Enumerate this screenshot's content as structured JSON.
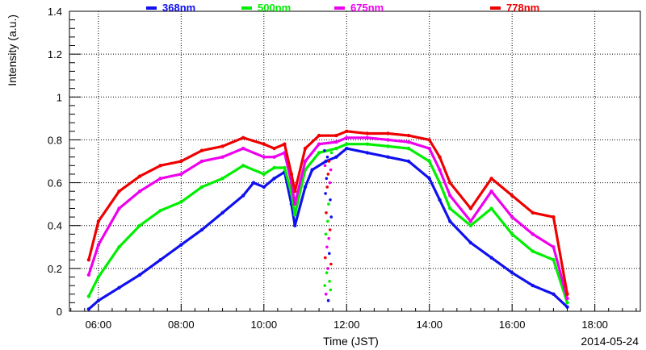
{
  "chart_data": {
    "type": "scatter",
    "title": "",
    "xlabel": "Time (JST)",
    "ylabel": "Intensity (a.u.)",
    "date_label": "2014-05-24",
    "xlim": [
      "05:18",
      "19:06"
    ],
    "ylim": [
      0,
      1.4
    ],
    "grid": true,
    "legend_position": "top",
    "x_ticks": [
      "06:00",
      "08:00",
      "10:00",
      "12:00",
      "14:00",
      "16:00",
      "18:00"
    ],
    "y_ticks": [
      "0",
      "0.2",
      "0.4",
      "0.6",
      "0.8",
      "1",
      "1.2",
      "1.4"
    ],
    "series": [
      {
        "name": "368nm",
        "color": "#1010ee",
        "points": [
          [
            "05:46",
            0.01
          ],
          [
            "06:00",
            0.05
          ],
          [
            "06:30",
            0.11
          ],
          [
            "07:00",
            0.17
          ],
          [
            "07:30",
            0.24
          ],
          [
            "08:00",
            0.31
          ],
          [
            "08:30",
            0.38
          ],
          [
            "09:00",
            0.46
          ],
          [
            "09:30",
            0.54
          ],
          [
            "09:45",
            0.6
          ],
          [
            "10:00",
            0.58
          ],
          [
            "10:15",
            0.62
          ],
          [
            "10:30",
            0.65
          ],
          [
            "10:40",
            0.5
          ],
          [
            "10:45",
            0.4
          ],
          [
            "11:00",
            0.58
          ],
          [
            "11:10",
            0.66
          ],
          [
            "11:30",
            0.7
          ],
          [
            "11:45",
            0.72
          ],
          [
            "12:00",
            0.76
          ],
          [
            "12:30",
            0.74
          ],
          [
            "13:00",
            0.72
          ],
          [
            "13:30",
            0.7
          ],
          [
            "14:00",
            0.62
          ],
          [
            "14:15",
            0.52
          ],
          [
            "14:30",
            0.42
          ],
          [
            "15:00",
            0.32
          ],
          [
            "15:30",
            0.25
          ],
          [
            "16:00",
            0.18
          ],
          [
            "16:30",
            0.12
          ],
          [
            "17:00",
            0.08
          ],
          [
            "17:20",
            0.02
          ]
        ]
      },
      {
        "name": "500nm",
        "color": "#00ee00",
        "points": [
          [
            "05:46",
            0.07
          ],
          [
            "06:00",
            0.16
          ],
          [
            "06:30",
            0.3
          ],
          [
            "07:00",
            0.4
          ],
          [
            "07:30",
            0.47
          ],
          [
            "08:00",
            0.51
          ],
          [
            "08:30",
            0.58
          ],
          [
            "09:00",
            0.62
          ],
          [
            "09:30",
            0.68
          ],
          [
            "10:00",
            0.64
          ],
          [
            "10:15",
            0.67
          ],
          [
            "10:30",
            0.67
          ],
          [
            "10:40",
            0.55
          ],
          [
            "10:45",
            0.45
          ],
          [
            "11:00",
            0.66
          ],
          [
            "11:20",
            0.74
          ],
          [
            "11:45",
            0.76
          ],
          [
            "12:00",
            0.78
          ],
          [
            "12:30",
            0.78
          ],
          [
            "13:00",
            0.77
          ],
          [
            "13:30",
            0.76
          ],
          [
            "14:00",
            0.7
          ],
          [
            "14:15",
            0.6
          ],
          [
            "14:30",
            0.48
          ],
          [
            "15:00",
            0.4
          ],
          [
            "15:30",
            0.48
          ],
          [
            "16:00",
            0.36
          ],
          [
            "16:30",
            0.28
          ],
          [
            "17:00",
            0.24
          ],
          [
            "17:20",
            0.04
          ]
        ]
      },
      {
        "name": "675nm",
        "color": "#ee00ee",
        "points": [
          [
            "05:46",
            0.17
          ],
          [
            "06:00",
            0.31
          ],
          [
            "06:30",
            0.48
          ],
          [
            "07:00",
            0.56
          ],
          [
            "07:30",
            0.62
          ],
          [
            "08:00",
            0.64
          ],
          [
            "08:30",
            0.7
          ],
          [
            "09:00",
            0.72
          ],
          [
            "09:30",
            0.76
          ],
          [
            "10:00",
            0.72
          ],
          [
            "10:15",
            0.72
          ],
          [
            "10:30",
            0.74
          ],
          [
            "10:40",
            0.6
          ],
          [
            "10:45",
            0.5
          ],
          [
            "11:00",
            0.7
          ],
          [
            "11:20",
            0.78
          ],
          [
            "11:45",
            0.79
          ],
          [
            "12:00",
            0.81
          ],
          [
            "12:30",
            0.81
          ],
          [
            "13:00",
            0.8
          ],
          [
            "13:30",
            0.79
          ],
          [
            "14:00",
            0.76
          ],
          [
            "14:15",
            0.66
          ],
          [
            "14:30",
            0.54
          ],
          [
            "15:00",
            0.42
          ],
          [
            "15:30",
            0.56
          ],
          [
            "16:00",
            0.44
          ],
          [
            "16:30",
            0.36
          ],
          [
            "17:00",
            0.3
          ],
          [
            "17:20",
            0.06
          ]
        ]
      },
      {
        "name": "778nm",
        "color": "#ee0000",
        "points": [
          [
            "05:46",
            0.24
          ],
          [
            "06:00",
            0.42
          ],
          [
            "06:30",
            0.56
          ],
          [
            "07:00",
            0.63
          ],
          [
            "07:30",
            0.68
          ],
          [
            "08:00",
            0.7
          ],
          [
            "08:30",
            0.75
          ],
          [
            "09:00",
            0.77
          ],
          [
            "09:30",
            0.81
          ],
          [
            "10:00",
            0.78
          ],
          [
            "10:15",
            0.76
          ],
          [
            "10:30",
            0.78
          ],
          [
            "10:40",
            0.64
          ],
          [
            "10:45",
            0.56
          ],
          [
            "11:00",
            0.76
          ],
          [
            "11:20",
            0.82
          ],
          [
            "11:45",
            0.82
          ],
          [
            "12:00",
            0.84
          ],
          [
            "12:30",
            0.83
          ],
          [
            "13:00",
            0.83
          ],
          [
            "13:30",
            0.82
          ],
          [
            "14:00",
            0.8
          ],
          [
            "14:15",
            0.72
          ],
          [
            "14:30",
            0.6
          ],
          [
            "15:00",
            0.48
          ],
          [
            "15:30",
            0.62
          ],
          [
            "16:00",
            0.54
          ],
          [
            "16:30",
            0.46
          ],
          [
            "17:00",
            0.44
          ],
          [
            "17:20",
            0.08
          ]
        ]
      }
    ],
    "transients": {
      "start": "11:28",
      "end": "11:38",
      "values": [
        0.75,
        0.12,
        0.68,
        0.25,
        0.55,
        0.36,
        0.08,
        0.46,
        0.62,
        0.18,
        0.3,
        0.58,
        0.72,
        0.42,
        0.2,
        0.64,
        0.05,
        0.5,
        0.34,
        0.7,
        0.27,
        0.14,
        0.6,
        0.38,
        0.52,
        0.1,
        0.66,
        0.22,
        0.44,
        0.74
      ]
    }
  }
}
